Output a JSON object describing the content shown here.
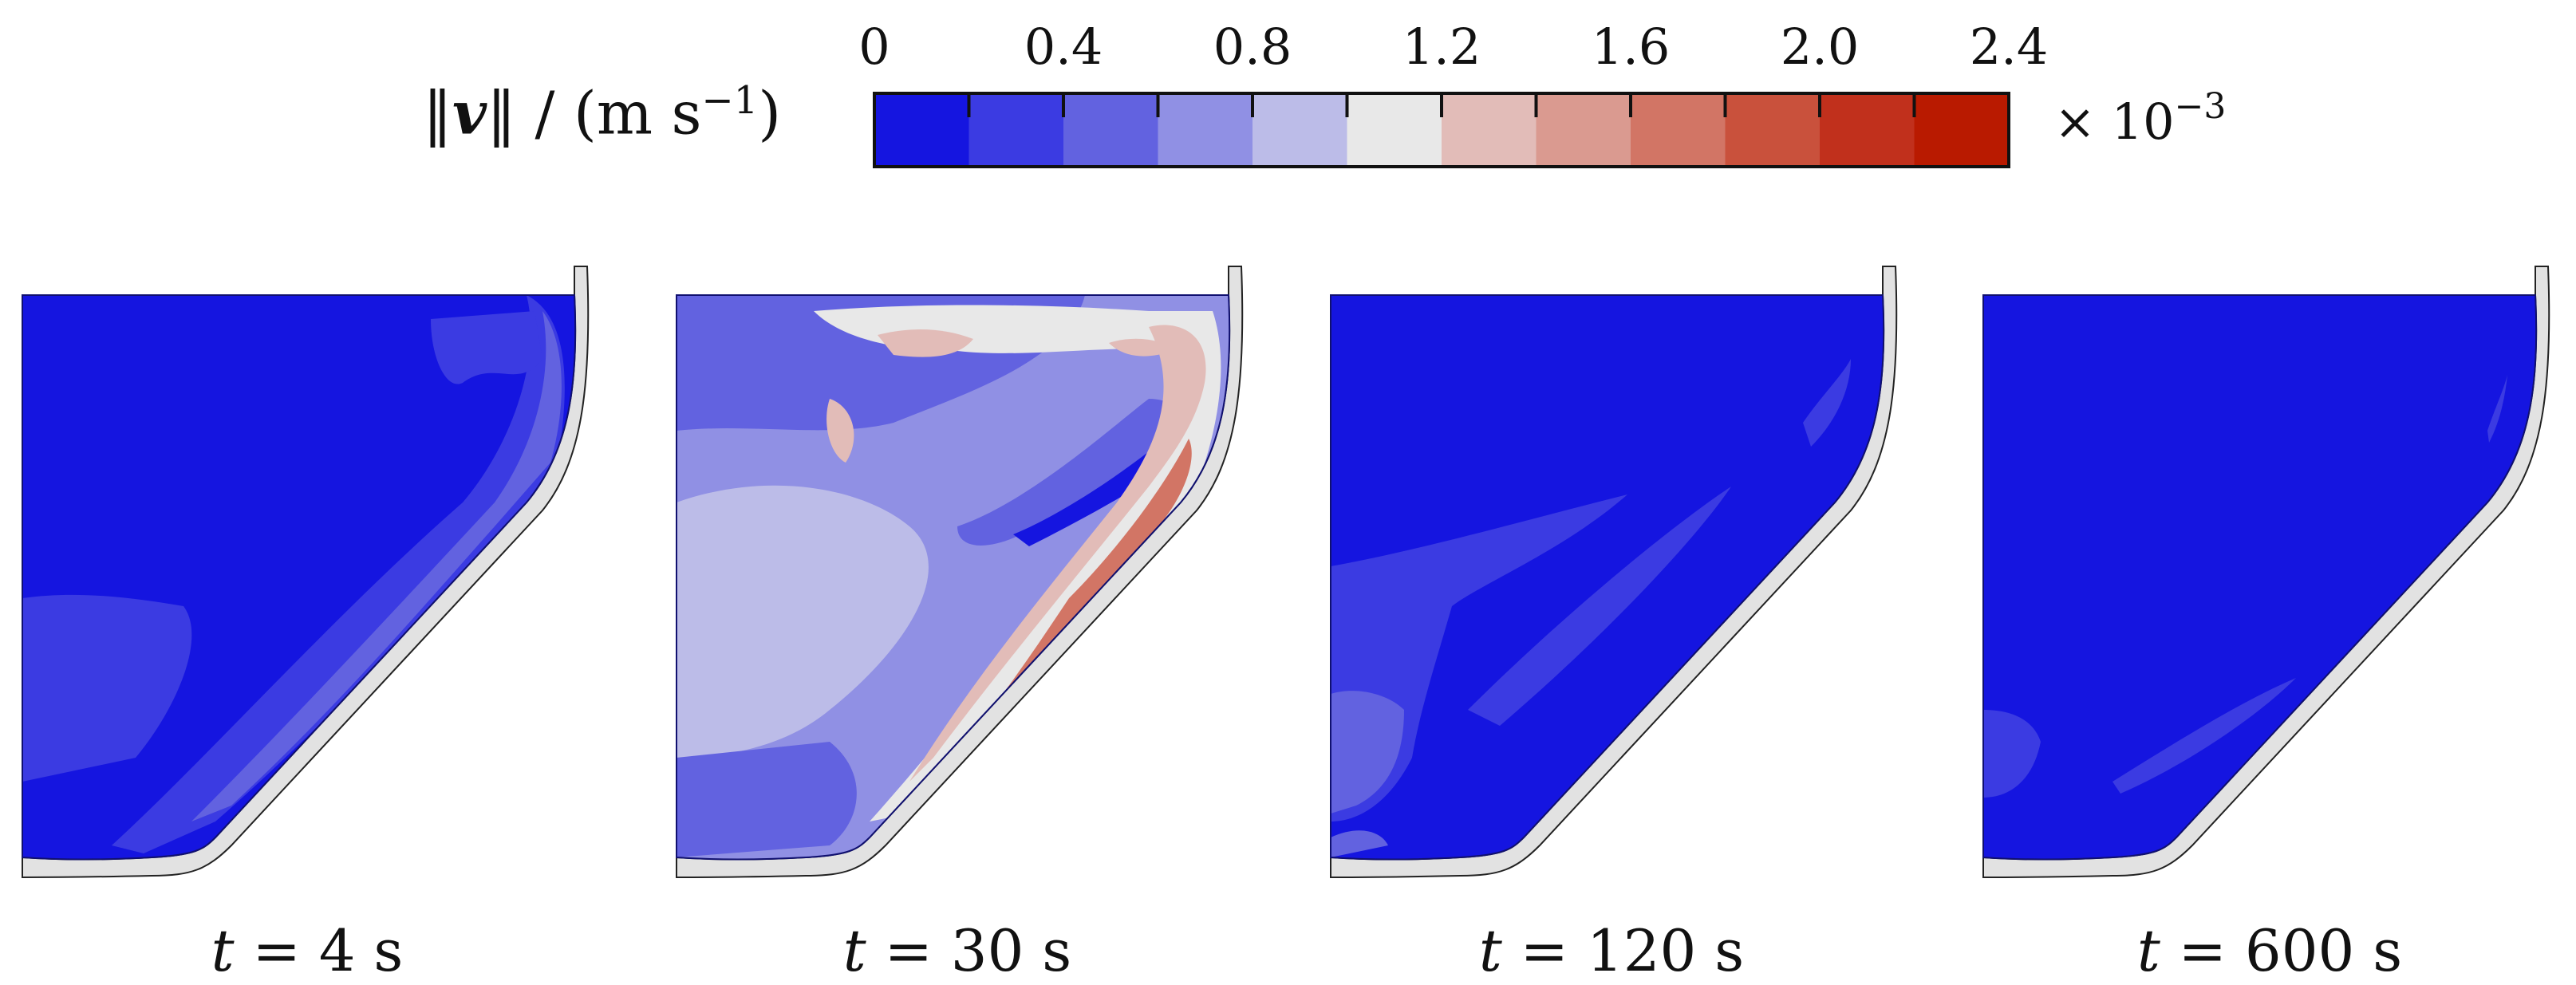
{
  "colorbar": {
    "quantity_label": "‖v‖ / (m s⁻¹)",
    "label_pre": "‖",
    "label_var": "v",
    "label_post": "‖ / (m s",
    "label_exp": "−1",
    "label_close": ")",
    "multiplier_base": "× 10",
    "multiplier_exp": "−3",
    "tick_labels": [
      "0",
      "0.4",
      "0.8",
      "1.2",
      "1.6",
      "2.0",
      "2.4"
    ],
    "range": [
      0,
      2.4
    ],
    "levels": 12,
    "colors": [
      "#1515e0",
      "#3b3be2",
      "#6262e0",
      "#9090e4",
      "#bcbce8",
      "#e8e8e8",
      "#e2bcb8",
      "#da9a90",
      "#d27565",
      "#c9513c",
      "#c1301c",
      "#b91a00"
    ]
  },
  "panels": [
    {
      "caption_t": "t",
      "caption_eq": " = 4 s",
      "caption": "t = 4 s"
    },
    {
      "caption_t": "t",
      "caption_eq": " = 30 s",
      "caption": "t = 30 s"
    },
    {
      "caption_t": "t",
      "caption_eq": " = 120 s",
      "caption": "t = 120 s"
    },
    {
      "caption_t": "t",
      "caption_eq": " = 600 s",
      "caption": "t = 600 s"
    }
  ]
}
